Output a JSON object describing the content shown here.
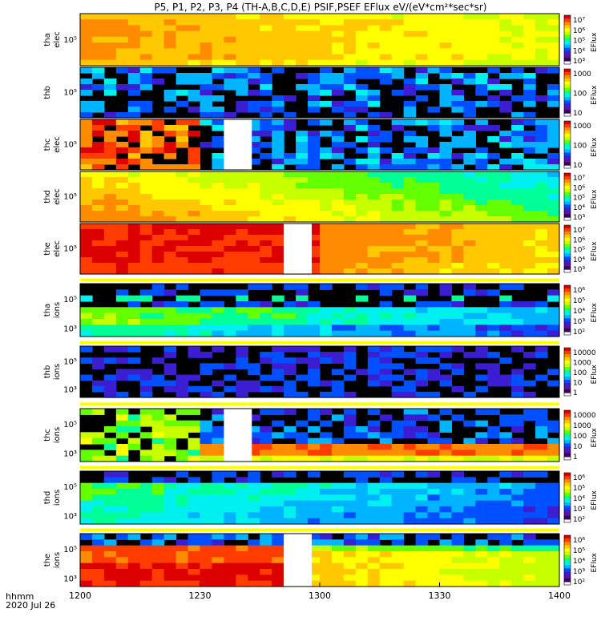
{
  "chart_data": {
    "type": "heatmap",
    "title": "P5, P1, P2, P3, P4 (TH-A,B,C,D,E) PSIF,PSEF EFlux eV/(eV*cm²*sec*sr)",
    "xaxis": {
      "label_line1": "hhmm",
      "label_line2": "2020 Jul 26",
      "range": [
        "12:00",
        "14:00"
      ],
      "ticks": [
        "1200",
        "1230",
        "1300",
        "1330",
        "1400"
      ]
    },
    "colorbar_label": "EFlux",
    "colormap": [
      "#000000",
      "#3c0064",
      "#5a14a0",
      "#3c1ed2",
      "#0050ff",
      "#00b4ff",
      "#00f0f0",
      "#00ff96",
      "#64ff00",
      "#c8ff00",
      "#ffff00",
      "#ffc800",
      "#ff8c00",
      "#ff3c00",
      "#dc0000"
    ],
    "panels": [
      {
        "probe": "tha",
        "species": "elec",
        "ytick": "10⁵",
        "cbar_ticks": [
          "10⁷",
          "10⁶",
          "10⁵",
          "10⁴",
          "10³"
        ],
        "pattern": "elec_a",
        "gap": null
      },
      {
        "probe": "thb",
        "species": "",
        "ytick": "10⁵",
        "cbar_ticks": [
          "1000",
          "100",
          "10"
        ],
        "pattern": "noise",
        "gap": null
      },
      {
        "probe": "thc",
        "species": "elec",
        "ytick": "10⁵",
        "cbar_ticks": [
          "1000",
          "100",
          "10"
        ],
        "pattern": "elec_c",
        "gap": [
          "12:36",
          "12:43"
        ]
      },
      {
        "probe": "thd",
        "species": "elec",
        "ytick": "10⁵",
        "cbar_ticks": [
          "10⁷",
          "10⁶",
          "10⁵",
          "10⁴",
          "10³"
        ],
        "pattern": "elec_d",
        "gap": null
      },
      {
        "probe": "the",
        "species": "elec",
        "ytick": "10⁵",
        "cbar_ticks": [
          "10⁷",
          "10⁶",
          "10⁵",
          "10⁴",
          "10³"
        ],
        "pattern": "elec_e",
        "gap": [
          "12:51",
          "12:58"
        ]
      },
      {
        "probe": "tha",
        "species": "ions",
        "ytick_top": "10⁵",
        "ytick_bot": "10³",
        "cbar_ticks": [
          "10⁶",
          "10⁵",
          "10⁴",
          "10³",
          "10²"
        ],
        "pattern": "ion_a",
        "gap": null
      },
      {
        "probe": "thb",
        "species": "ions",
        "ytick_top": "10⁵",
        "ytick_bot": "10³",
        "cbar_ticks": [
          "10000",
          "1000",
          "100",
          "10",
          "1"
        ],
        "pattern": "ion_b",
        "gap": null
      },
      {
        "probe": "thc",
        "species": "ions",
        "ytick_top": "10⁵",
        "ytick_bot": "10³",
        "cbar_ticks": [
          "10000",
          "1000",
          "100",
          "10",
          "1"
        ],
        "pattern": "ion_c",
        "gap": [
          "12:36",
          "12:43"
        ]
      },
      {
        "probe": "thd",
        "species": "ions",
        "ytick_top": "10⁵",
        "ytick_bot": "10³",
        "cbar_ticks": [
          "10⁶",
          "10⁵",
          "10⁴",
          "10³",
          "10²"
        ],
        "pattern": "ion_d",
        "gap": null
      },
      {
        "probe": "the",
        "species": "ions",
        "ytick_top": "10⁵",
        "ytick_bot": "10³",
        "cbar_ticks": [
          "10⁶",
          "10⁵",
          "10⁴",
          "10³",
          "10²"
        ],
        "pattern": "ion_e",
        "gap": [
          "12:51",
          "12:58"
        ]
      }
    ]
  }
}
